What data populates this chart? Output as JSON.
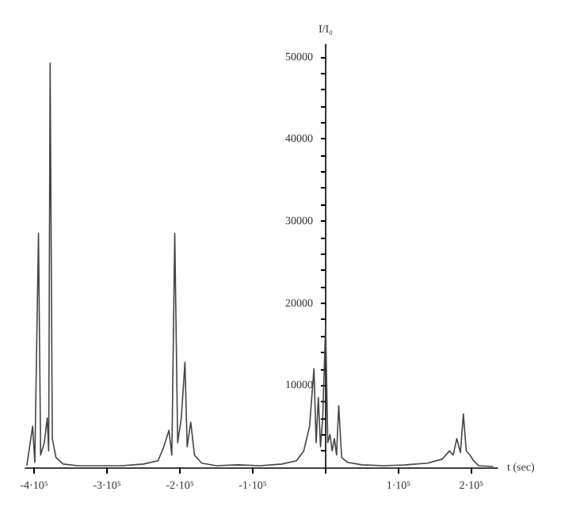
{
  "chart_data": {
    "type": "line",
    "xlabel": "t (sec)",
    "ylabel": "I/I₀",
    "x": [
      -410000,
      -402000,
      -399000,
      -394000,
      -391000,
      -386000,
      -382000,
      -380000,
      -378000,
      -375000,
      -370000,
      -360000,
      -340000,
      -310000,
      -280000,
      -250000,
      -230000,
      -222000,
      -215000,
      -211000,
      -207000,
      -203000,
      -198000,
      -193000,
      -190000,
      -185000,
      -180000,
      -170000,
      -150000,
      -120000,
      -90000,
      -60000,
      -40000,
      -30000,
      -22000,
      -16000,
      -13000,
      -10000,
      -7000,
      -4000,
      0,
      3000,
      6000,
      9000,
      12000,
      15000,
      18000,
      22000,
      30000,
      50000,
      80000,
      110000,
      140000,
      160000,
      170000,
      175000,
      180000,
      185000,
      189000,
      193000,
      198000,
      203000,
      210000,
      230000
    ],
    "series": [
      {
        "color": "#444444",
        "values": [
          200,
          5000,
          600,
          28500,
          1500,
          3000,
          6000,
          2000,
          49200,
          3500,
          1200,
          400,
          200,
          200,
          200,
          400,
          800,
          2500,
          4500,
          1500,
          28500,
          3000,
          6000,
          12800,
          2500,
          5500,
          1500,
          500,
          200,
          300,
          200,
          400,
          800,
          2000,
          5000,
          12000,
          3000,
          8500,
          2500,
          6000,
          17300,
          3000,
          4000,
          2000,
          3500,
          1500,
          7500,
          1200,
          600,
          300,
          200,
          300,
          500,
          1000,
          2000,
          1500,
          3500,
          1800,
          6500,
          2000,
          1500,
          800,
          200,
          100
        ]
      }
    ],
    "xlim": [
      -412000,
      236000
    ],
    "ylim": [
      0,
      51500
    ],
    "xticks": [
      {
        "value": -400000,
        "label": "-4·10⁵"
      },
      {
        "value": -300000,
        "label": "-3·10⁵"
      },
      {
        "value": -200000,
        "label": "-2·10⁵"
      },
      {
        "value": -100000,
        "label": "-1·10⁵"
      },
      {
        "value": 0,
        "label": null
      },
      {
        "value": 100000,
        "label": "1·10⁵"
      },
      {
        "value": 200000,
        "label": "2·10⁵"
      }
    ],
    "yticks": [
      {
        "value": 2000,
        "label": null
      },
      {
        "value": 4000,
        "label": null
      },
      {
        "value": 6000,
        "label": null
      },
      {
        "value": 8000,
        "label": null
      },
      10000,
      {
        "value": 12000,
        "label": null
      },
      {
        "value": 14000,
        "label": null
      },
      {
        "value": 16000,
        "label": null
      },
      {
        "value": 18000,
        "label": null
      },
      20000,
      {
        "value": 22000,
        "label": null
      },
      {
        "value": 24000,
        "label": null
      },
      {
        "value": 26000,
        "label": null
      },
      {
        "value": 28000,
        "label": null
      },
      30000,
      {
        "value": 32000,
        "label": null
      },
      {
        "value": 34000,
        "label": null
      },
      {
        "value": 36000,
        "label": null
      },
      {
        "value": 38000,
        "label": null
      },
      40000,
      {
        "value": 42000,
        "label": null
      },
      {
        "value": 44000,
        "label": null
      },
      {
        "value": 46000,
        "label": null
      },
      {
        "value": 48000,
        "label": null
      },
      50000
    ],
    "grid": false,
    "marker": "none",
    "line_style": "solid"
  }
}
